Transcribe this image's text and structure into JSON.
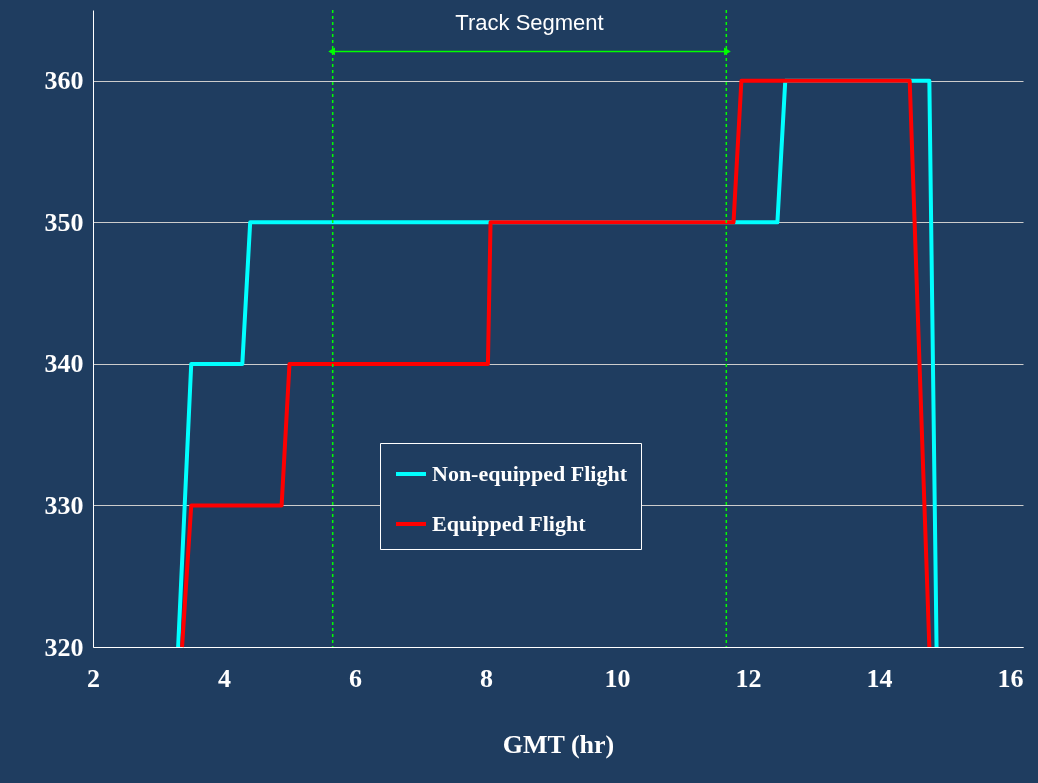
{
  "chart_data": {
    "type": "line",
    "xlabel": "GMT (hr)",
    "xlim": [
      2,
      16.2
    ],
    "xticks": [
      2,
      4,
      6,
      8,
      10,
      12,
      14,
      16
    ],
    "ylim": [
      320,
      365
    ],
    "yticks": [
      320,
      330,
      340,
      350,
      360
    ],
    "grid": "y",
    "legend": "bottom",
    "series": [
      {
        "name": "Non-equipped Flight",
        "color": "#00ffff",
        "x": [
          3.3,
          3.5,
          4.28,
          4.4,
          12.45,
          12.57,
          14.77,
          14.88
        ],
        "values": [
          320,
          340,
          340,
          350,
          350,
          360,
          360,
          320
        ]
      },
      {
        "name": "Equipped Flight",
        "color": "#ff0000",
        "x": [
          3.36,
          3.5,
          4.88,
          5.0,
          8.03,
          8.07,
          11.78,
          11.9,
          14.47,
          14.77
        ],
        "values": [
          320,
          330,
          330,
          340,
          340,
          350,
          350,
          360,
          360,
          320
        ]
      }
    ],
    "ref_lines": [
      {
        "axis": "x",
        "value": 5.66,
        "color": "#00ff00",
        "line_style": "dotted"
      },
      {
        "axis": "x",
        "value": 11.67,
        "color": "#00ff00",
        "line_style": "dotted"
      }
    ],
    "annotations": [
      "Track Segment"
    ]
  }
}
